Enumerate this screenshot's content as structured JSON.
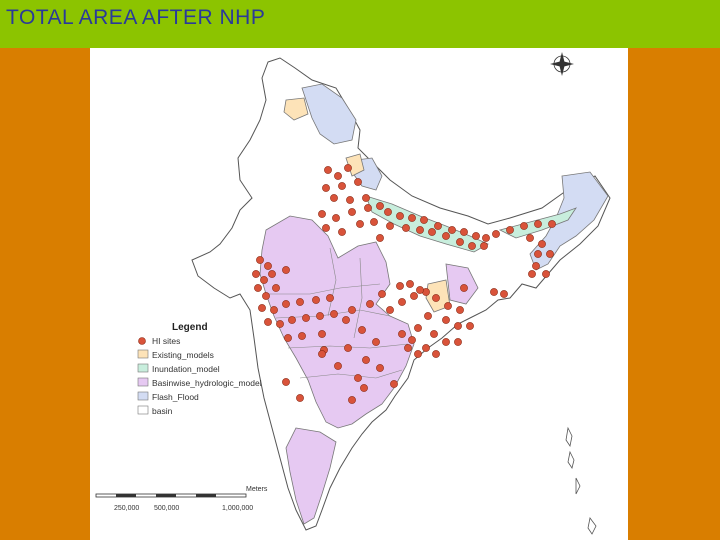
{
  "header": {
    "title": "TOTAL AREA AFTER NHP",
    "background_color": "#8cc400",
    "title_color": "#2a3a9a"
  },
  "page": {
    "background_color": "#d97e00"
  },
  "map": {
    "legend": {
      "title": "Legend",
      "items": [
        {
          "label": "HI sites",
          "symbol": "circle",
          "color": "#d9533a"
        },
        {
          "label": "Existing_models",
          "symbol": "box",
          "color": "#fde3b8"
        },
        {
          "label": "Inundation_model",
          "symbol": "box",
          "color": "#c8eedd"
        },
        {
          "label": "Basinwise_hydrologic_model",
          "symbol": "box",
          "color": "#e6c9f2"
        },
        {
          "label": "Flash_Flood",
          "symbol": "box",
          "color": "#d3dcf3"
        },
        {
          "label": "basin",
          "symbol": "box",
          "color": "#ffffff"
        }
      ]
    },
    "scale_bar": {
      "unit": "Meters",
      "labels": [
        "250,000",
        "500,000",
        "1,000,000"
      ]
    },
    "north_arrow": "north-arrow-icon"
  }
}
